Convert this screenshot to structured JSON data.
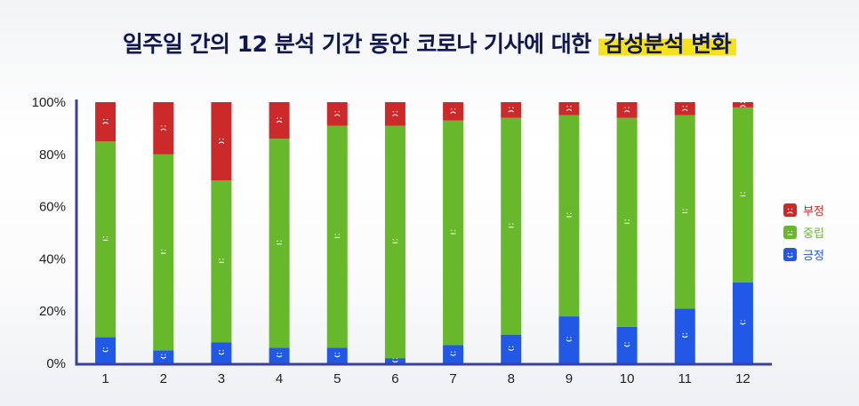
{
  "title": {
    "text": "일주일 간의 12 분석 기간 동안 코로나 기사에 대한",
    "highlight": "감성분석 변화"
  },
  "chart_data": {
    "type": "bar",
    "stacked": true,
    "normalized": true,
    "categories": [
      "1",
      "2",
      "3",
      "4",
      "5",
      "6",
      "7",
      "8",
      "9",
      "10",
      "11",
      "12"
    ],
    "series": [
      {
        "name": "긍정",
        "color": "#2159e6",
        "face": "positive-face-icon",
        "values": [
          10,
          5,
          8,
          6,
          6,
          2,
          7,
          11,
          18,
          14,
          21,
          31
        ]
      },
      {
        "name": "중립",
        "color": "#67b82a",
        "face": "neutral-face-icon",
        "values": [
          75,
          75,
          62,
          80,
          85,
          89,
          86,
          83,
          77,
          80,
          74,
          67
        ]
      },
      {
        "name": "부정",
        "color": "#cc2a2a",
        "face": "negative-face-icon",
        "values": [
          15,
          20,
          30,
          14,
          9,
          9,
          7,
          6,
          5,
          6,
          5,
          2
        ]
      }
    ],
    "y_ticks": [
      "0%",
      "20%",
      "40%",
      "60%",
      "80%",
      "100%"
    ],
    "ylim": [
      0,
      100
    ],
    "legend_position": "right",
    "grid": false,
    "axis_color": "#3a3fa0"
  }
}
